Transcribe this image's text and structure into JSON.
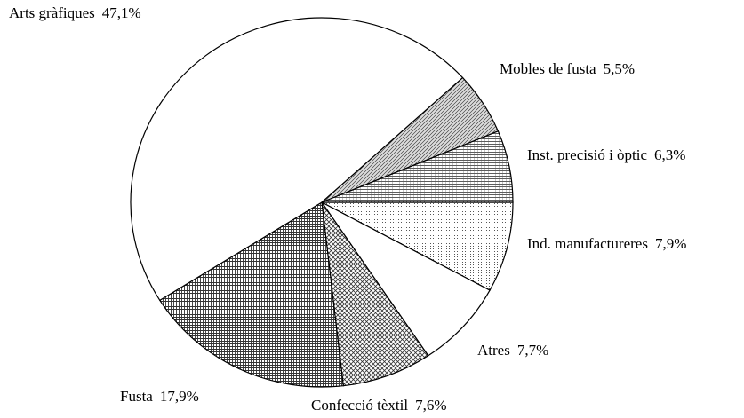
{
  "chart_data": {
    "type": "pie",
    "categories": [
      "Ind. manufactureres",
      "Atres",
      "Confecció tèxtil",
      "Fusta",
      "Arts gràfiques",
      "Mobles de fusta",
      "Inst. precisió i òptic"
    ],
    "values": [
      7.9,
      7.7,
      7.6,
      17.9,
      47.1,
      5.5,
      6.3
    ],
    "value_labels": [
      "7,9%",
      "7,7%",
      "7,6%",
      "17,9%",
      "47,1%",
      "5,5%",
      "6,3%"
    ],
    "colors": [
      "url(#p-dots)",
      "#ffffff",
      "url(#p-cross)",
      "url(#p-grid)",
      "#ffffff",
      "url(#p-diag)",
      "url(#p-horiz)"
    ]
  }
}
